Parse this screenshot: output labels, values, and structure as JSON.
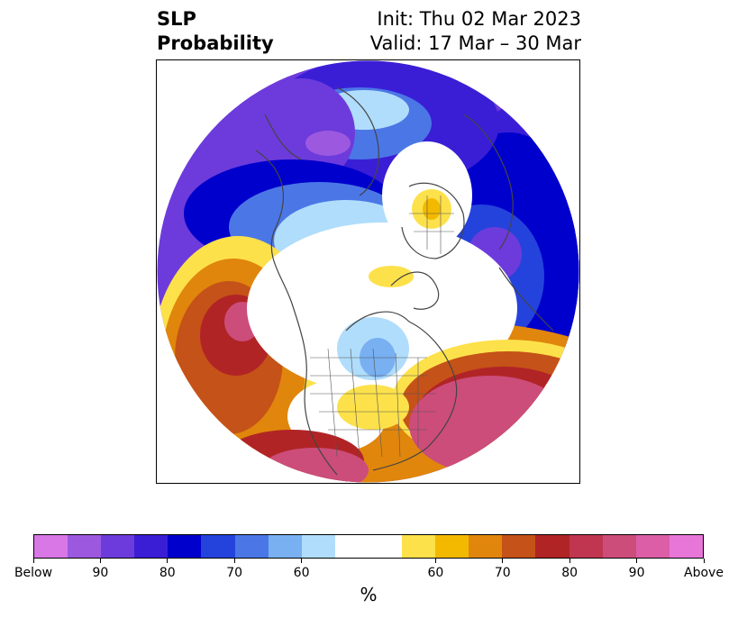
{
  "header": {
    "title_line1": "SLP",
    "title_line2": "Probability",
    "init_text": "Init: Thu 02 Mar 2023",
    "valid_text": "Valid: 17 Mar – 30 Mar"
  },
  "map": {
    "projection": "north-polar-stereographic",
    "features": [
      "continents",
      "country-borders",
      "us-state-borders",
      "probability-shading"
    ]
  },
  "colorbar": {
    "colors": [
      "#d977e6",
      "#9c59e0",
      "#6d3bdb",
      "#3a1ed6",
      "#0000cd",
      "#2443dc",
      "#4b77e6",
      "#78b0f2",
      "#b0ddfb",
      "#ffffff",
      "#ffffff",
      "#fde14b",
      "#f3b900",
      "#e0860c",
      "#c55218",
      "#b12426",
      "#c03550",
      "#cc4d7a",
      "#db5ea6",
      "#e876d8"
    ],
    "labels": [
      "Below",
      "90",
      "80",
      "70",
      "60",
      "60",
      "70",
      "80",
      "90",
      "Above"
    ],
    "unit_label": "%"
  },
  "legend_palette": {
    "below_deep": "#9c59e0",
    "below_mid": "#0000cd",
    "below_light": "#b0ddfb",
    "neutral": "#ffffff",
    "above_light": "#fde14b",
    "above_mid": "#e0860c",
    "above_deep": "#b12426",
    "above_max": "#cc4d7a"
  }
}
